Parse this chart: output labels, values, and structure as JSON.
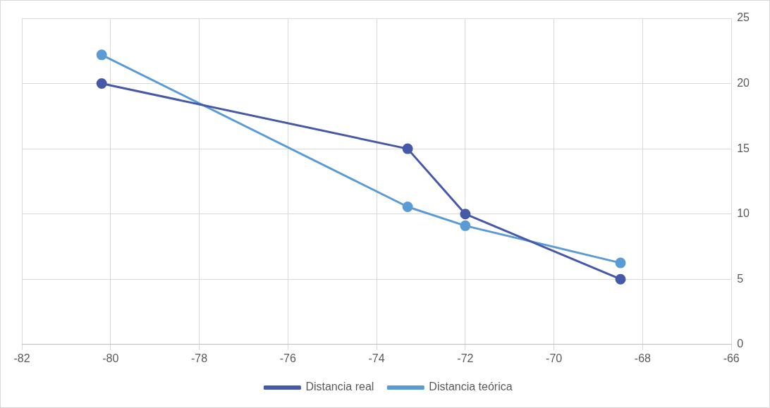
{
  "chart_data": {
    "type": "line",
    "x": [
      -80.2,
      -73.3,
      -72,
      -68.5
    ],
    "series": [
      {
        "name": "Distancia real",
        "color": "#4659a8",
        "values": [
          20,
          15,
          10,
          5
        ]
      },
      {
        "name": "Distancia teórica",
        "color": "#5b9bd5",
        "values": [
          22.2,
          10.55,
          9.1,
          6.25
        ]
      }
    ],
    "xlim": [
      -82,
      -66
    ],
    "xticks": [
      -82,
      -80,
      -78,
      -76,
      -74,
      -72,
      -70,
      -68,
      -66
    ],
    "ylim": [
      0,
      25
    ],
    "yticks": [
      0,
      5,
      10,
      15,
      20,
      25
    ],
    "grid": true,
    "legend": "bottom",
    "marker": "circle",
    "line_style": "solid"
  }
}
